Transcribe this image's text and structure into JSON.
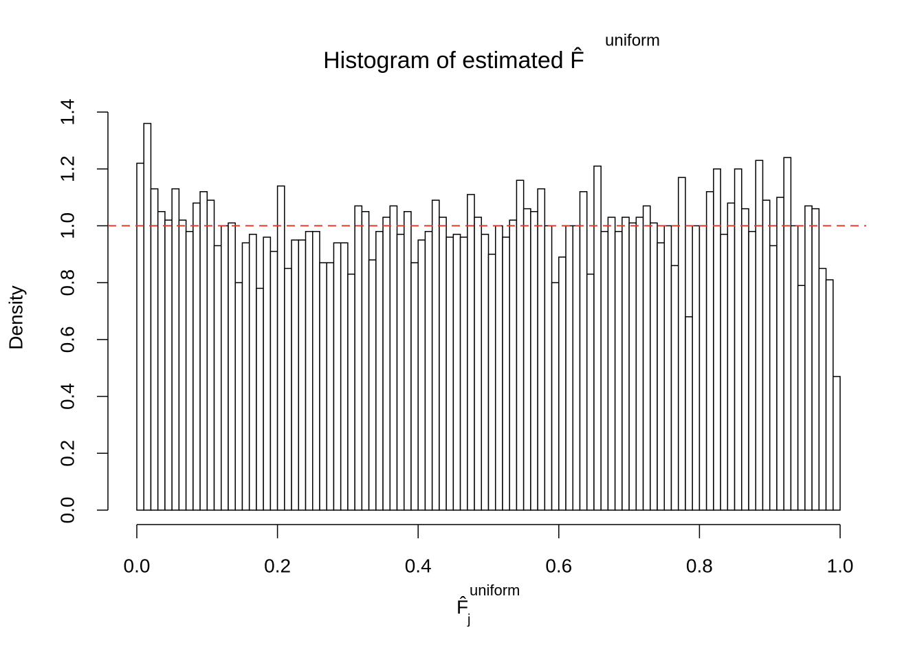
{
  "chart_data": {
    "type": "histogram",
    "title": "Histogram of estimated F̂",
    "title_superscript": "uniform",
    "xlabel": "F̂",
    "xlabel_subscript": "j",
    "xlabel_superscript": "uniform",
    "ylabel": "Density",
    "bins": [
      0,
      0.01,
      0.02,
      0.03,
      0.04,
      0.05,
      0.06,
      0.07,
      0.08,
      0.09,
      0.1,
      0.11,
      0.12,
      0.13,
      0.14,
      0.15,
      0.16,
      0.17,
      0.18,
      0.19,
      0.2,
      0.21,
      0.22,
      0.23,
      0.24,
      0.25,
      0.26,
      0.27,
      0.28,
      0.29,
      0.3,
      0.31,
      0.32,
      0.33,
      0.34,
      0.35,
      0.36,
      0.37,
      0.38,
      0.39,
      0.4,
      0.41,
      0.42,
      0.43,
      0.44,
      0.45,
      0.46,
      0.47,
      0.48,
      0.49,
      0.5,
      0.51,
      0.52,
      0.53,
      0.54,
      0.55,
      0.56,
      0.57,
      0.58,
      0.59,
      0.6,
      0.61,
      0.62,
      0.63,
      0.64,
      0.65,
      0.66,
      0.67,
      0.68,
      0.69,
      0.7,
      0.71,
      0.72,
      0.73,
      0.74,
      0.75,
      0.76,
      0.77,
      0.78,
      0.79,
      0.8,
      0.81,
      0.82,
      0.83,
      0.84,
      0.85,
      0.86,
      0.87,
      0.88,
      0.89,
      0.9,
      0.91,
      0.92,
      0.93,
      0.94,
      0.95,
      0.96,
      0.97,
      0.98,
      0.99,
      1
    ],
    "values": [
      1.22,
      1.36,
      1.13,
      1.05,
      1.02,
      1.13,
      1.02,
      0.98,
      1.08,
      1.12,
      1.09,
      0.93,
      1.0,
      1.01,
      0.8,
      0.94,
      0.97,
      0.78,
      0.96,
      0.91,
      1.14,
      0.85,
      0.95,
      0.95,
      0.98,
      0.98,
      0.87,
      0.87,
      0.94,
      0.94,
      0.83,
      1.07,
      1.05,
      0.88,
      0.98,
      1.03,
      1.07,
      0.97,
      1.05,
      0.87,
      0.95,
      0.98,
      1.09,
      1.03,
      0.96,
      0.97,
      0.96,
      1.11,
      1.03,
      0.97,
      0.9,
      1.0,
      0.96,
      1.02,
      1.16,
      1.06,
      1.05,
      1.13,
      1.0,
      0.8,
      0.89,
      1.0,
      1.0,
      1.12,
      0.83,
      1.21,
      0.98,
      1.03,
      0.98,
      1.03,
      1.01,
      1.03,
      1.07,
      1.01,
      0.94,
      1.0,
      0.86,
      1.17,
      0.68,
      1.0,
      1.0,
      1.12,
      1.2,
      0.97,
      1.08,
      1.2,
      1.06,
      0.98,
      1.23,
      1.09,
      0.93,
      1.1,
      1.24,
      1.0,
      0.79,
      1.07,
      1.06,
      0.85,
      0.81,
      0.47
    ],
    "color": "#ffffff",
    "edge_color": "#000000",
    "xlim": [
      0,
      1
    ],
    "ylim": [
      0,
      1.4
    ],
    "xticks": [
      {
        "value": 0,
        "label": "0.0"
      },
      0.2,
      0.4,
      0.6,
      0.8,
      {
        "value": 1,
        "label": "1.0"
      }
    ],
    "yticks": [
      {
        "value": 0,
        "label": "0.0"
      },
      0.2,
      0.4,
      0.6,
      0.8,
      {
        "value": 1,
        "label": "1.0"
      },
      1.2,
      1.4
    ],
    "hline": {
      "value": 1,
      "color": "#e8392f"
    }
  }
}
